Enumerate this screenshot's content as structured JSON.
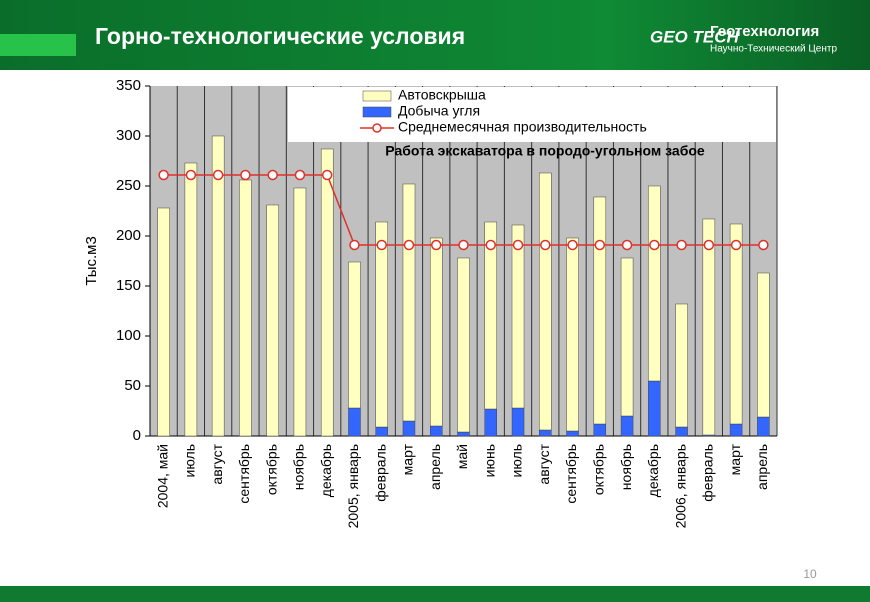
{
  "header": {
    "title": "Горно-технологические условия",
    "logo_mark": "GEO TECH",
    "logo_name": "Геотехнология",
    "logo_sub": "Научно-Технический Центр"
  },
  "page_number": "10",
  "chart_data": {
    "type": "bar",
    "stacked": true,
    "categories": [
      "2004, май",
      "июль",
      "август",
      "сентябрь",
      "октябрь",
      "ноябрь",
      "декабрь",
      "2005, январь",
      "февраль",
      "март",
      "апрель",
      "май",
      "июнь",
      "июль",
      "август",
      "сентябрь",
      "октябрь",
      "ноябрь",
      "декабрь",
      "2006, январь",
      "февраль",
      "март",
      "апрель"
    ],
    "series": [
      {
        "name": "Автовскрыша",
        "type": "bar",
        "color": "#ffffc0",
        "values": [
          228,
          273,
          300,
          256,
          231,
          248,
          287,
          146,
          205,
          237,
          188,
          174,
          187,
          183,
          257,
          193,
          227,
          158,
          195,
          123,
          216,
          200,
          144
        ]
      },
      {
        "name": "Добыча угля",
        "type": "bar",
        "color": "#3366ff",
        "values": [
          0,
          0,
          0,
          0,
          0,
          0,
          0,
          28,
          9,
          15,
          10,
          4,
          27,
          28,
          6,
          5,
          12,
          20,
          55,
          9,
          1,
          12,
          19
        ]
      },
      {
        "name": "Среднемесячная производительность",
        "type": "line",
        "color": "#e0302a",
        "values": [
          261,
          261,
          261,
          261,
          261,
          261,
          261,
          191,
          191,
          191,
          191,
          191,
          191,
          191,
          191,
          191,
          191,
          191,
          191,
          191,
          191,
          191,
          191
        ]
      }
    ],
    "ylabel": "Тыс.м3",
    "annotation": "Работа экскаватора в породо-угольном забое",
    "ylim": [
      0,
      350
    ],
    "yticks": [
      0,
      50,
      100,
      150,
      200,
      250,
      300,
      350
    ],
    "grid": false,
    "plot_color": "#c0c0c0"
  }
}
